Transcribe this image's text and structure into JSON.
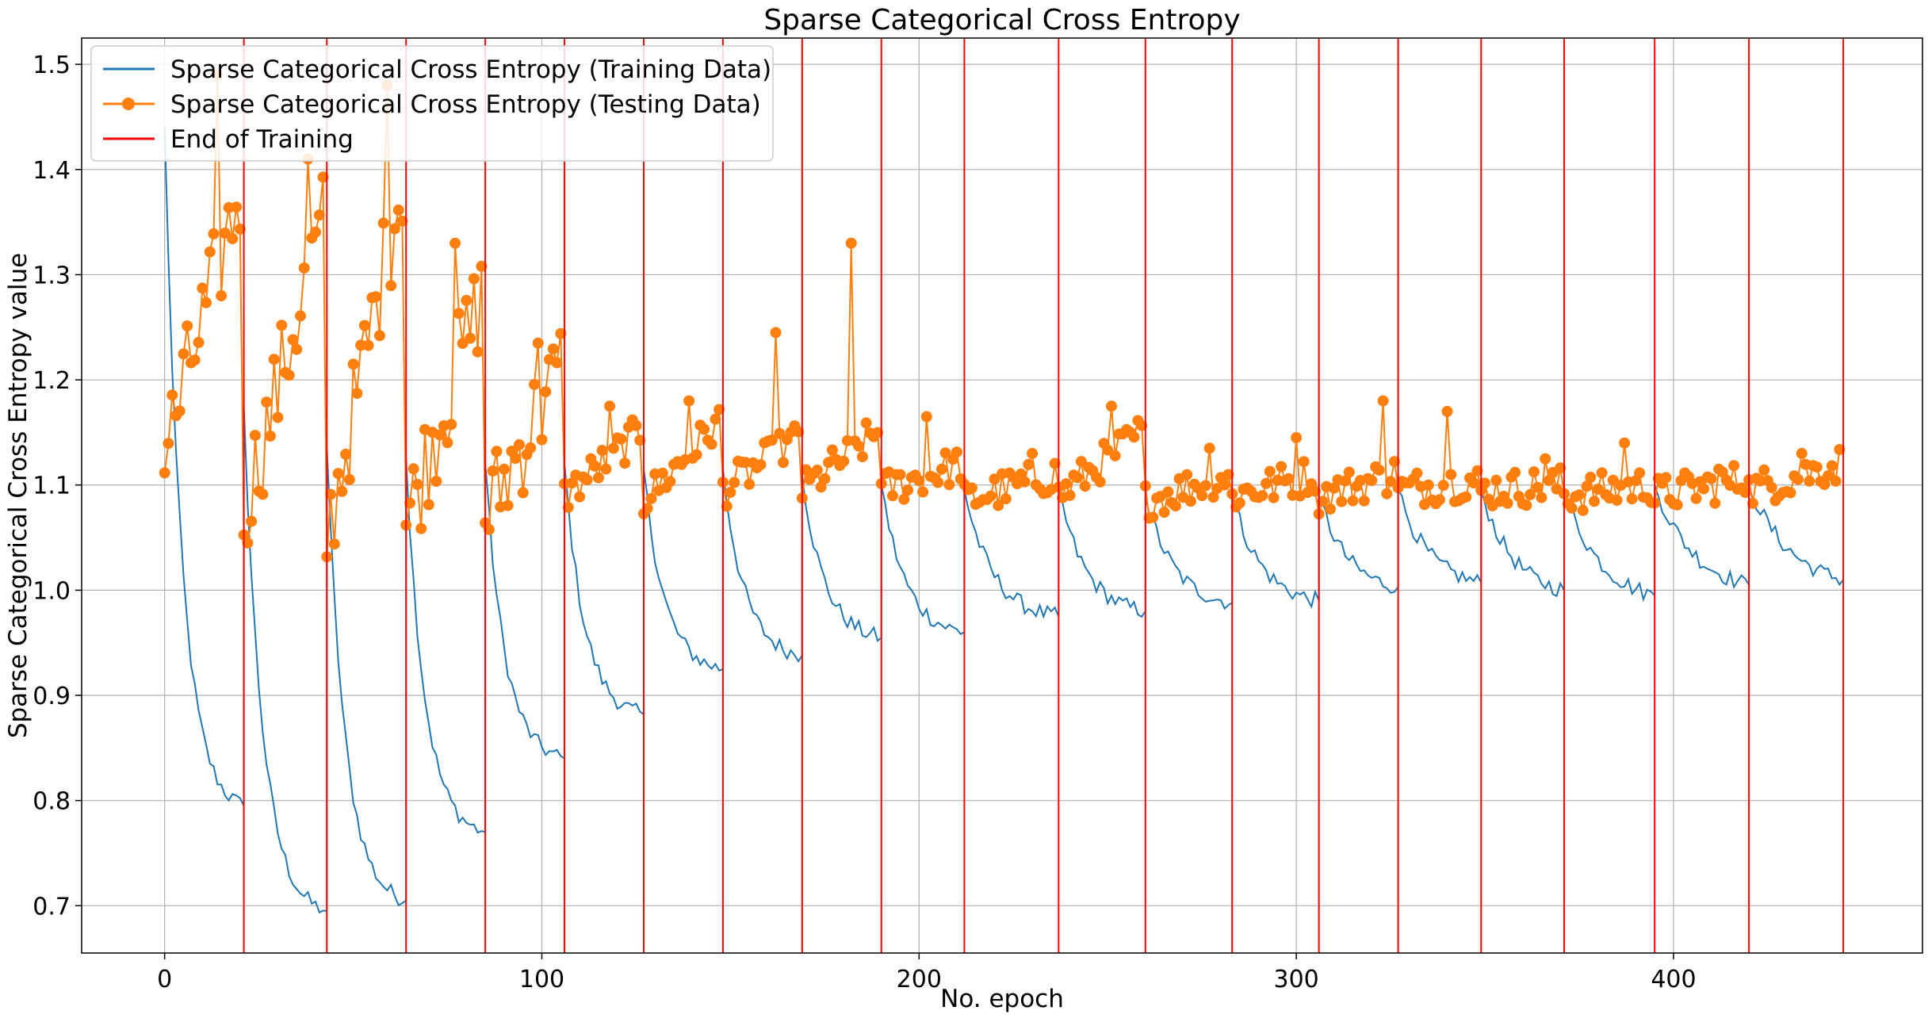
{
  "chart_data": {
    "type": "line",
    "title": "Sparse Categorical Cross Entropy",
    "xlabel": "No. epoch",
    "ylabel": "Sparse Categorical Cross Entropy value",
    "xlim": [
      -22,
      466
    ],
    "ylim": [
      0.655,
      1.525
    ],
    "xticks": [
      0,
      100,
      200,
      300,
      400
    ],
    "yticks": [
      0.7,
      0.8,
      0.9,
      1.0,
      1.1,
      1.2,
      1.3,
      1.4,
      1.5
    ],
    "grid": true,
    "legend_position": "top-left",
    "legend": [
      {
        "label": "Sparse Categorical Cross Entropy (Training Data)",
        "color": "#1f77b4",
        "style": "line"
      },
      {
        "label": "Sparse Categorical Cross Entropy (Testing Data)",
        "color": "#ff7f0e",
        "style": "line-marker"
      },
      {
        "label": "End of Training",
        "color": "#ff0000",
        "style": "line"
      }
    ],
    "vlines": [
      21,
      43,
      64,
      85,
      106,
      127,
      148,
      169,
      190,
      212,
      237,
      260,
      283,
      306,
      327,
      349,
      371,
      395,
      420,
      445
    ],
    "training_segments": [
      {
        "start": 0,
        "end": 21,
        "y_start": 1.44,
        "y_end": 0.795
      },
      {
        "start": 21,
        "end": 43,
        "y_start": 1.175,
        "y_end": 0.695
      },
      {
        "start": 43,
        "end": 64,
        "y_start": 1.135,
        "y_end": 0.705
      },
      {
        "start": 64,
        "end": 85,
        "y_start": 1.125,
        "y_end": 0.77
      },
      {
        "start": 85,
        "end": 106,
        "y_start": 1.12,
        "y_end": 0.84
      },
      {
        "start": 106,
        "end": 127,
        "y_start": 1.12,
        "y_end": 0.882
      },
      {
        "start": 127,
        "end": 148,
        "y_start": 1.115,
        "y_end": 0.925
      },
      {
        "start": 148,
        "end": 169,
        "y_start": 1.115,
        "y_end": 0.938
      },
      {
        "start": 169,
        "end": 190,
        "y_start": 1.11,
        "y_end": 0.955
      },
      {
        "start": 190,
        "end": 212,
        "y_start": 1.1,
        "y_end": 0.96
      },
      {
        "start": 212,
        "end": 237,
        "y_start": 1.095,
        "y_end": 0.975
      },
      {
        "start": 237,
        "end": 260,
        "y_start": 1.095,
        "y_end": 0.98
      },
      {
        "start": 260,
        "end": 283,
        "y_start": 1.09,
        "y_end": 0.988
      },
      {
        "start": 283,
        "end": 306,
        "y_start": 1.09,
        "y_end": 0.99
      },
      {
        "start": 306,
        "end": 327,
        "y_start": 1.09,
        "y_end": 1.003
      },
      {
        "start": 327,
        "end": 349,
        "y_start": 1.095,
        "y_end": 1.007
      },
      {
        "start": 349,
        "end": 371,
        "y_start": 1.095,
        "y_end": 1.0
      },
      {
        "start": 371,
        "end": 395,
        "y_start": 1.095,
        "y_end": 0.995
      },
      {
        "start": 395,
        "end": 420,
        "y_start": 1.1,
        "y_end": 1.005
      },
      {
        "start": 420,
        "end": 445,
        "y_start": 1.1,
        "y_end": 1.01
      }
    ],
    "testing_segments": [
      {
        "start": 0,
        "end": 21,
        "y_start": 1.13,
        "y_end": 1.38,
        "peak": 1.49
      },
      {
        "start": 21,
        "end": 43,
        "y_start": 1.075,
        "y_end": 1.35,
        "peak": 1.41
      },
      {
        "start": 43,
        "end": 64,
        "y_start": 1.05,
        "y_end": 1.39,
        "peak": 1.48
      },
      {
        "start": 64,
        "end": 85,
        "y_start": 1.065,
        "y_end": 1.28,
        "peak": 1.33
      },
      {
        "start": 85,
        "end": 106,
        "y_start": 1.07,
        "y_end": 1.21,
        "peak": 1.235
      },
      {
        "start": 106,
        "end": 127,
        "y_start": 1.09,
        "y_end": 1.15,
        "peak": 1.175
      },
      {
        "start": 127,
        "end": 148,
        "y_start": 1.085,
        "y_end": 1.16,
        "peak": 1.18
      },
      {
        "start": 148,
        "end": 169,
        "y_start": 1.095,
        "y_end": 1.145,
        "peak": 1.245
      },
      {
        "start": 169,
        "end": 190,
        "y_start": 1.095,
        "y_end": 1.15,
        "peak": 1.33
      },
      {
        "start": 190,
        "end": 212,
        "y_start": 1.095,
        "y_end": 1.12,
        "peak": 1.165
      },
      {
        "start": 212,
        "end": 237,
        "y_start": 1.085,
        "y_end": 1.11,
        "peak": 1.13
      },
      {
        "start": 237,
        "end": 260,
        "y_start": 1.09,
        "y_end": 1.15,
        "peak": 1.175
      },
      {
        "start": 260,
        "end": 283,
        "y_start": 1.085,
        "y_end": 1.11,
        "peak": 1.135
      },
      {
        "start": 283,
        "end": 306,
        "y_start": 1.09,
        "y_end": 1.11,
        "peak": 1.145
      },
      {
        "start": 306,
        "end": 327,
        "y_start": 1.09,
        "y_end": 1.11,
        "peak": 1.18
      },
      {
        "start": 327,
        "end": 349,
        "y_start": 1.095,
        "y_end": 1.105,
        "peak": 1.17
      },
      {
        "start": 349,
        "end": 371,
        "y_start": 1.095,
        "y_end": 1.1,
        "peak": 1.125
      },
      {
        "start": 371,
        "end": 395,
        "y_start": 1.09,
        "y_end": 1.1,
        "peak": 1.14
      },
      {
        "start": 395,
        "end": 420,
        "y_start": 1.09,
        "y_end": 1.105,
        "peak": 1.115
      },
      {
        "start": 420,
        "end": 445,
        "y_start": 1.095,
        "y_end": 1.12,
        "peak": 1.13
      }
    ],
    "colors": {
      "training": "#1f77b4",
      "testing": "#ff7f0e",
      "end_line": "#ff0000",
      "grid": "#b0b0b0"
    }
  }
}
